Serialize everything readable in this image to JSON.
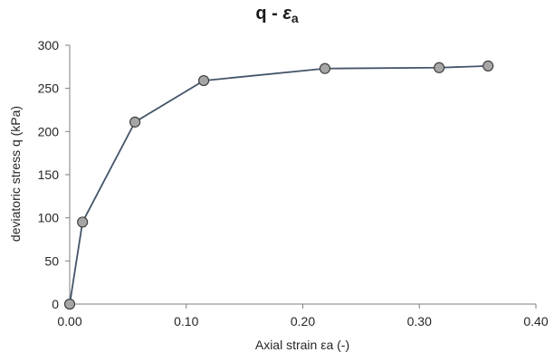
{
  "chart_data": {
    "type": "line",
    "title_main": "q - ",
    "title_symbol": "ε",
    "title_subscript": "a",
    "xlabel": "Axial strain εa (-)",
    "ylabel": "deviatoric stress q (kPa)",
    "xlim": [
      0,
      0.4
    ],
    "ylim": [
      0,
      300
    ],
    "x_ticks": [
      0.0,
      0.1,
      0.2,
      0.3,
      0.4
    ],
    "x_tick_labels": [
      "0.00",
      "0.10",
      "0.20",
      "0.30",
      "0.40"
    ],
    "y_ticks": [
      0,
      50,
      100,
      150,
      200,
      250,
      300
    ],
    "y_tick_labels": [
      "0",
      "50",
      "100",
      "150",
      "200",
      "250",
      "300"
    ],
    "grid": false,
    "series": [
      {
        "x": [
          0.0,
          0.011,
          0.056,
          0.115,
          0.219,
          0.317,
          0.359
        ],
        "y": [
          0,
          95,
          211,
          259,
          273,
          274,
          276
        ]
      }
    ],
    "line_color": "#44546a",
    "marker_fill": "#a6a6a6",
    "marker_edge": "#404040"
  }
}
